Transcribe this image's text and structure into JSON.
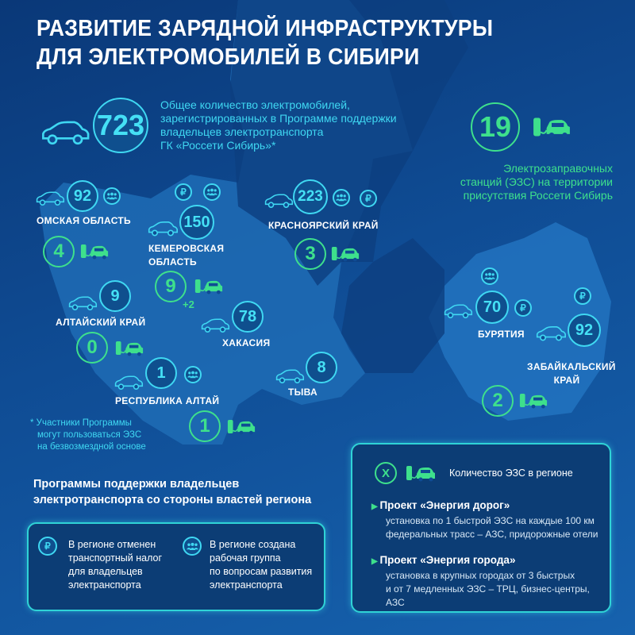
{
  "title_line1": "РАЗВИТИЕ ЗАРЯДНОЙ ИНФРАСТРУКТУРЫ",
  "title_line2": "ДЛЯ ЭЛЕКТРОМОБИЛЕЙ В СИБИРИ",
  "total_ev": {
    "value": "723",
    "lines": [
      "Общее количество электромобилей,",
      "зарегистрированных в Программе поддержки",
      "владельцев электротранспорта",
      "ГК «Россети Сибирь»*"
    ]
  },
  "total_stations": {
    "value": "19",
    "lines": [
      "Электрозаправочных",
      "станций (ЭЗС) на территории",
      "присутствия Россети Сибирь"
    ]
  },
  "regions": {
    "omsk": {
      "name": "ОМСКАЯ ОБЛАСТЬ",
      "ev": "92",
      "stations": "4",
      "icons": [
        "people-icon"
      ]
    },
    "kemerovo": {
      "name1": "КЕМЕРОВСКАЯ",
      "name2": "ОБЛАСТЬ",
      "ev": "150",
      "stations": "9",
      "extra": "+2",
      "icons": [
        "ruble-icon",
        "people-icon"
      ]
    },
    "altai_krai": {
      "name": "АЛТАЙСКИЙ КРАЙ",
      "ev": "9",
      "stations": "0",
      "icons": []
    },
    "khakasia": {
      "name": "ХАКАСИЯ",
      "ev": "78",
      "icons": []
    },
    "altai_rep": {
      "name": "РЕСПУБЛИКА АЛТАЙ",
      "ev": "1",
      "stations": "1",
      "icons": [
        "people-icon"
      ]
    },
    "tyva": {
      "name": "ТЫВА",
      "ev": "8",
      "icons": []
    },
    "krasnoyarsk": {
      "name": "КРАСНОЯРСКИЙ  КРАЙ",
      "ev": "223",
      "stations": "3",
      "icons": [
        "people-icon",
        "ruble-icon"
      ]
    },
    "buryatia": {
      "name": "БУРЯТИЯ",
      "ev": "70",
      "icons": [
        "people-icon",
        "ruble-icon"
      ]
    },
    "zabaikalsky": {
      "name1": "ЗАБАЙКАЛЬСКИЙ",
      "name2": "КРАЙ",
      "ev": "92",
      "stations": "2",
      "icons": [
        "ruble-icon"
      ]
    }
  },
  "footnote": [
    "* Участники Программы",
    "могут пользоваться ЭЗС",
    "на безвозмездной основе"
  ],
  "support": {
    "heading": [
      "Программы поддержки владельцев",
      "электротранспорта со стороны властей региона"
    ],
    "items": [
      {
        "icon": "ruble-icon",
        "symbol": "₽",
        "lines": [
          "В регионе отменен",
          "транспортный налог",
          "для владельцев",
          "электранспорта"
        ]
      },
      {
        "icon": "people-icon",
        "lines": [
          "В регионе создана",
          "рабочая группа",
          "по вопросам развития",
          "электранспорта"
        ]
      }
    ]
  },
  "legend": {
    "symbol": "X",
    "label": "Количество ЭЗС в регионе",
    "projects": [
      {
        "title": "Проект «Энергия дорог»",
        "lines": [
          "установка по 1 быстрой ЭЗС на каждые 100 км",
          "федеральных трасс – АЗС, придорожные отели"
        ]
      },
      {
        "title": "Проект «Энергия города»",
        "lines": [
          "установка в крупных городах от 3 быстрых",
          "и от 7 медленных ЭЗС – ТРЦ, бизнес-центры, АЗС"
        ]
      }
    ]
  },
  "ruble_symbol": "₽",
  "colors": {
    "background": "#0f4c94",
    "accent_cyan": "#3fd8f2",
    "accent_green": "#3ee08c"
  }
}
